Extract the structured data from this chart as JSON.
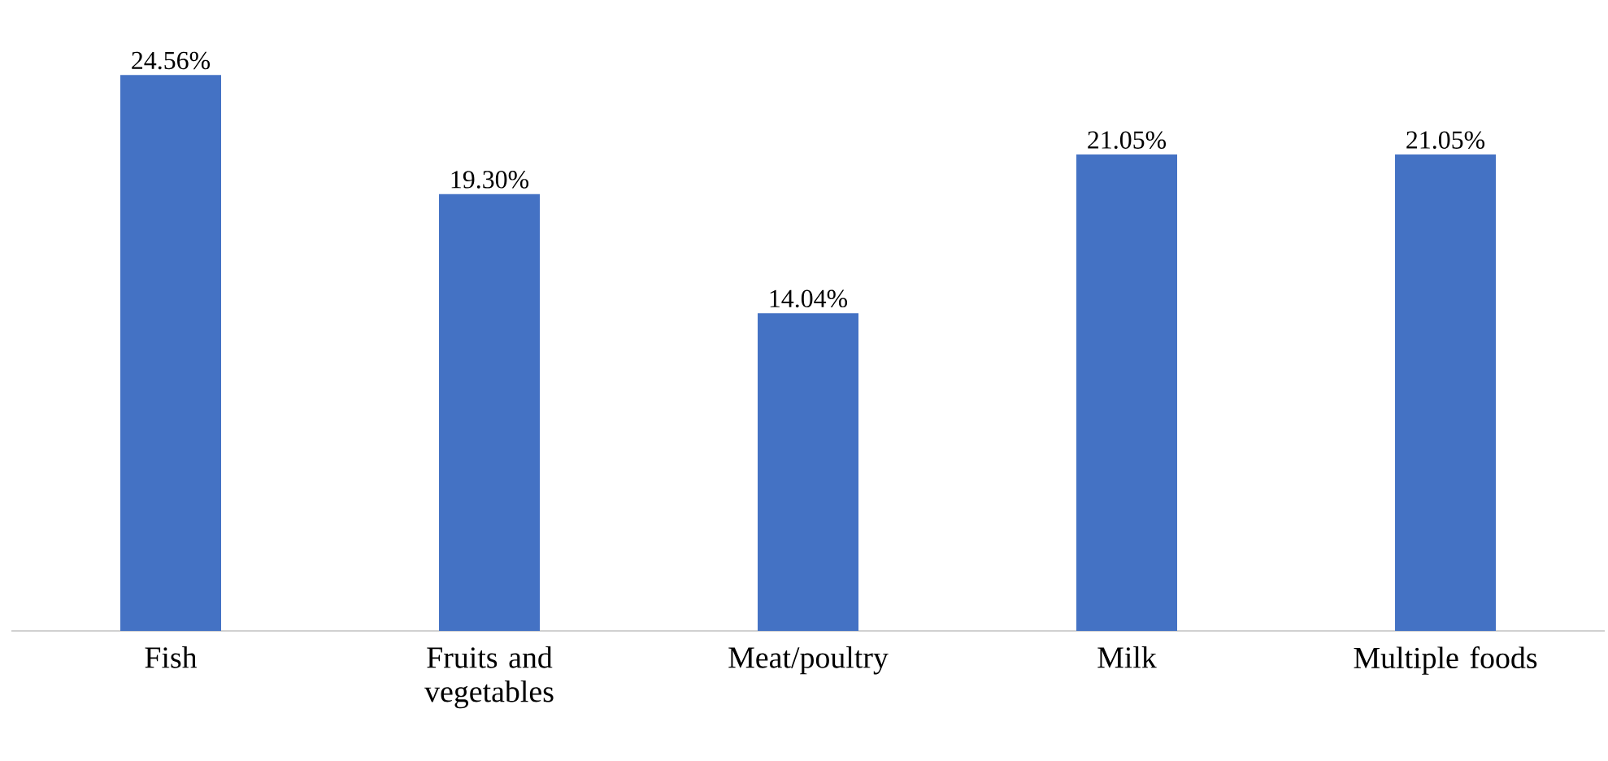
{
  "chart_data": {
    "type": "bar",
    "categories": [
      "Fish",
      "Fruits and vegetables",
      "Meat/poultry",
      "Milk",
      "Multiple foods"
    ],
    "values": [
      24.56,
      19.3,
      14.04,
      21.05,
      21.05
    ],
    "value_labels": [
      "24.56%",
      "19.30%",
      "14.04%",
      "21.05%",
      "21.05%"
    ],
    "color": "#4472c4"
  }
}
